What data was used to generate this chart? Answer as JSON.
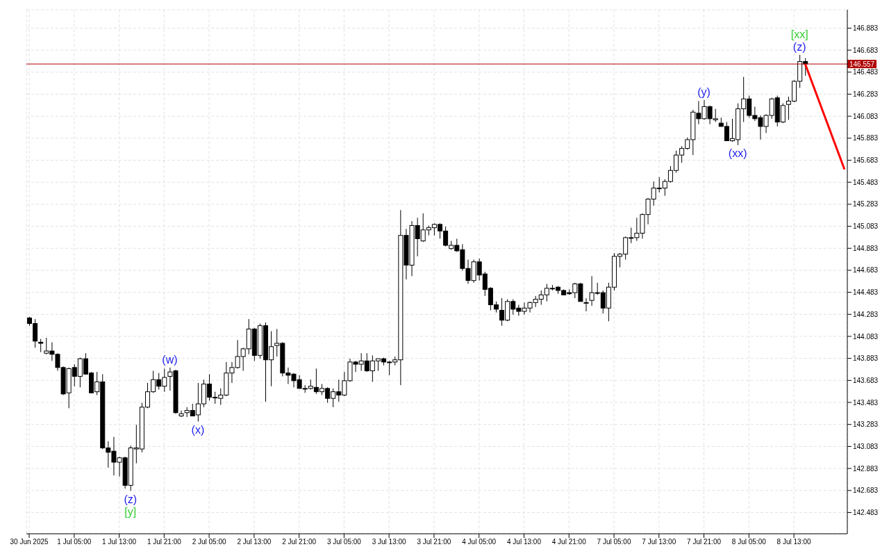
{
  "chart_data": {
    "type": "candlestick",
    "categories": [
      "30 Jun 2025",
      null,
      null,
      null,
      null,
      null,
      null,
      null,
      "1 Jul 05:00",
      null,
      null,
      null,
      null,
      null,
      null,
      null,
      "1 Jul 13:00",
      null,
      null,
      null,
      null,
      null,
      null,
      null,
      "1 Jul 21:00",
      null,
      null,
      null,
      null,
      null,
      null,
      null,
      "2 Jul 05:00",
      null,
      null,
      null,
      null,
      null,
      null,
      null,
      "2 Jul 13:00",
      null,
      null,
      null,
      null,
      null,
      null,
      null,
      "2 Jul 21:00",
      null,
      null,
      null,
      null,
      null,
      null,
      null,
      "3 Jul 05:00",
      null,
      null,
      null,
      null,
      null,
      null,
      null,
      "3 Jul 13:00",
      null,
      null,
      null,
      null,
      null,
      null,
      null,
      "3 Jul 21:00",
      null,
      null,
      null,
      null,
      null,
      null,
      null,
      "4 Jul 05:00",
      null,
      null,
      null,
      null,
      null,
      null,
      null,
      "4 Jul 13:00",
      null,
      null,
      null,
      null,
      null,
      null,
      null,
      "4 Jul 21:00",
      null,
      null,
      null,
      null,
      null,
      null,
      null,
      "7 Jul 05:00",
      null,
      null,
      null,
      null,
      null,
      null,
      null,
      "7 Jul 13:00",
      null,
      null,
      null,
      null,
      null,
      null,
      null,
      "7 Jul 21:00",
      null,
      null,
      null,
      null,
      null,
      null,
      null,
      "8 Jul 05:00",
      null,
      null,
      null,
      null,
      null,
      null,
      null,
      "8 Jul 13:00",
      null,
      null,
      null,
      null,
      null,
      null,
      null,
      null,
      null
    ],
    "ohlc": [
      [
        144.25,
        144.26,
        144.18,
        144.2
      ],
      [
        144.2,
        144.24,
        143.98,
        144.04
      ],
      [
        144.03,
        144.06,
        143.94,
        144.02
      ],
      [
        143.93,
        144.07,
        143.92,
        143.95
      ],
      [
        143.95,
        144.03,
        143.86,
        143.92
      ],
      [
        143.92,
        143.93,
        143.77,
        143.8
      ],
      [
        143.8,
        143.81,
        143.55,
        143.56
      ],
      [
        143.57,
        143.8,
        143.43,
        143.79
      ],
      [
        143.8,
        143.83,
        143.63,
        143.72
      ],
      [
        143.72,
        143.89,
        143.62,
        143.88
      ],
      [
        143.88,
        143.93,
        143.74,
        143.74
      ],
      [
        143.75,
        143.76,
        143.57,
        143.57
      ],
      [
        143.58,
        143.76,
        143.55,
        143.67
      ],
      [
        143.67,
        143.74,
        143.06,
        143.07
      ],
      [
        143.07,
        143.13,
        142.89,
        143.03
      ],
      [
        143.04,
        143.17,
        142.82,
        142.94
      ],
      [
        142.94,
        142.99,
        142.81,
        142.98
      ],
      [
        142.98,
        142.99,
        142.7,
        142.73
      ],
      [
        142.73,
        143.09,
        142.68,
        143.07
      ],
      [
        143.06,
        143.28,
        142.93,
        143.07
      ],
      [
        143.06,
        143.48,
        143.03,
        143.44
      ],
      [
        143.44,
        143.66,
        143.43,
        143.58
      ],
      [
        143.58,
        143.77,
        143.57,
        143.69
      ],
      [
        143.69,
        143.75,
        143.6,
        143.63
      ],
      [
        143.63,
        143.79,
        143.58,
        143.71
      ],
      [
        143.72,
        143.8,
        143.59,
        143.76
      ],
      [
        143.77,
        143.78,
        143.38,
        143.39
      ],
      [
        143.36,
        143.41,
        143.35,
        143.38
      ],
      [
        143.39,
        143.44,
        143.35,
        143.41
      ],
      [
        143.41,
        143.47,
        143.36,
        143.36
      ],
      [
        143.37,
        143.66,
        143.31,
        143.47
      ],
      [
        143.47,
        143.69,
        143.44,
        143.65
      ],
      [
        143.65,
        143.74,
        143.5,
        143.53
      ],
      [
        143.53,
        143.58,
        143.47,
        143.53
      ],
      [
        143.52,
        143.61,
        143.46,
        143.55
      ],
      [
        143.55,
        143.85,
        143.54,
        143.75
      ],
      [
        143.75,
        143.85,
        143.66,
        143.8
      ],
      [
        143.8,
        144.05,
        143.79,
        143.9
      ],
      [
        143.9,
        143.98,
        143.77,
        143.97
      ],
      [
        143.97,
        144.24,
        143.92,
        144.15
      ],
      [
        144.15,
        144.16,
        143.86,
        143.91
      ],
      [
        143.91,
        144.2,
        143.88,
        144.18
      ],
      [
        144.18,
        144.21,
        143.49,
        143.87
      ],
      [
        143.87,
        144.13,
        143.63,
        143.99
      ],
      [
        144.0,
        144.15,
        143.9,
        144.02
      ],
      [
        144.02,
        144.03,
        143.72,
        143.75
      ],
      [
        143.75,
        143.8,
        143.65,
        143.73
      ],
      [
        143.74,
        143.75,
        143.62,
        143.68
      ],
      [
        143.69,
        143.73,
        143.61,
        143.61
      ],
      [
        143.61,
        143.64,
        143.57,
        143.61
      ],
      [
        143.61,
        143.69,
        143.6,
        143.63
      ],
      [
        143.62,
        143.79,
        143.56,
        143.58
      ],
      [
        143.58,
        143.65,
        143.55,
        143.61
      ],
      [
        143.61,
        143.62,
        143.48,
        143.52
      ],
      [
        143.52,
        143.61,
        143.44,
        143.58
      ],
      [
        143.58,
        143.69,
        143.49,
        143.55
      ],
      [
        143.55,
        143.76,
        143.54,
        143.68
      ],
      [
        143.68,
        143.88,
        143.67,
        143.85
      ],
      [
        143.85,
        143.86,
        143.76,
        143.83
      ],
      [
        143.83,
        143.93,
        143.77,
        143.86
      ],
      [
        143.86,
        143.93,
        143.76,
        143.77
      ],
      [
        143.77,
        143.91,
        143.67,
        143.86
      ],
      [
        143.86,
        143.88,
        143.77,
        143.88
      ],
      [
        143.88,
        143.89,
        143.82,
        143.85
      ],
      [
        143.85,
        143.86,
        143.73,
        143.85
      ],
      [
        143.85,
        143.9,
        143.82,
        143.87
      ],
      [
        143.87,
        145.23,
        143.64,
        145.0
      ],
      [
        145.0,
        145.06,
        144.6,
        144.73
      ],
      [
        144.73,
        145.13,
        144.63,
        145.09
      ],
      [
        145.09,
        145.16,
        144.81,
        144.97
      ],
      [
        144.95,
        145.2,
        144.94,
        145.05
      ],
      [
        145.05,
        145.09,
        145.0,
        145.07
      ],
      [
        145.07,
        145.11,
        145.0,
        145.1
      ],
      [
        145.1,
        145.11,
        144.97,
        145.04
      ],
      [
        145.04,
        145.08,
        144.9,
        144.91
      ],
      [
        144.88,
        144.95,
        144.87,
        144.91
      ],
      [
        144.91,
        144.97,
        144.85,
        144.86
      ],
      [
        144.87,
        144.92,
        144.68,
        144.7
      ],
      [
        144.7,
        144.78,
        144.56,
        144.59
      ],
      [
        144.59,
        144.78,
        144.57,
        144.76
      ],
      [
        144.76,
        144.79,
        144.59,
        144.64
      ],
      [
        144.65,
        144.67,
        144.45,
        144.51
      ],
      [
        144.52,
        144.53,
        144.32,
        144.37
      ],
      [
        144.37,
        144.4,
        144.3,
        144.33
      ],
      [
        144.32,
        144.43,
        144.18,
        144.23
      ],
      [
        144.23,
        144.42,
        144.22,
        144.4
      ],
      [
        144.4,
        144.42,
        144.28,
        144.33
      ],
      [
        144.34,
        144.37,
        144.27,
        144.31
      ],
      [
        144.31,
        144.39,
        144.28,
        144.34
      ],
      [
        144.34,
        144.4,
        144.3,
        144.39
      ],
      [
        144.39,
        144.45,
        144.35,
        144.42
      ],
      [
        144.42,
        144.5,
        144.37,
        144.46
      ],
      [
        144.46,
        144.56,
        144.4,
        144.52
      ],
      [
        144.52,
        144.55,
        144.5,
        144.52
      ],
      [
        144.53,
        144.54,
        144.47,
        144.5
      ],
      [
        144.5,
        144.51,
        144.46,
        144.46
      ],
      [
        144.48,
        144.51,
        144.46,
        144.47
      ],
      [
        144.48,
        144.57,
        144.43,
        144.56
      ],
      [
        144.56,
        144.57,
        144.4,
        144.4
      ],
      [
        144.39,
        144.43,
        144.31,
        144.39
      ],
      [
        144.41,
        144.63,
        144.36,
        144.48
      ],
      [
        144.48,
        144.57,
        144.46,
        144.48
      ],
      [
        144.48,
        144.5,
        144.29,
        144.34
      ],
      [
        144.34,
        144.57,
        144.22,
        144.53
      ],
      [
        144.53,
        144.84,
        144.5,
        144.81
      ],
      [
        144.81,
        144.84,
        144.71,
        144.83
      ],
      [
        144.83,
        144.99,
        144.78,
        144.98
      ],
      [
        144.98,
        145.07,
        144.93,
        144.98
      ],
      [
        144.98,
        145.16,
        144.95,
        145.02
      ],
      [
        145.02,
        145.2,
        144.97,
        145.19
      ],
      [
        145.19,
        145.34,
        145.1,
        145.33
      ],
      [
        145.33,
        145.49,
        145.27,
        145.43
      ],
      [
        145.43,
        145.53,
        145.39,
        145.43
      ],
      [
        145.43,
        145.51,
        145.36,
        145.49
      ],
      [
        145.49,
        145.63,
        145.48,
        145.59
      ],
      [
        145.59,
        145.77,
        145.57,
        145.73
      ],
      [
        145.73,
        145.81,
        145.66,
        145.79
      ],
      [
        145.79,
        145.89,
        145.78,
        145.87
      ],
      [
        145.87,
        146.14,
        145.73,
        146.12
      ],
      [
        146.11,
        146.22,
        146.01,
        146.06
      ],
      [
        146.06,
        146.23,
        146.05,
        146.17
      ],
      [
        146.17,
        146.18,
        146.01,
        146.06
      ],
      [
        146.05,
        146.15,
        146.03,
        146.06
      ],
      [
        146.02,
        146.07,
        145.99,
        145.99
      ],
      [
        145.99,
        146.03,
        145.86,
        145.86
      ],
      [
        145.86,
        146.06,
        145.85,
        145.88
      ],
      [
        145.87,
        146.2,
        145.82,
        146.15
      ],
      [
        146.15,
        146.44,
        146.03,
        146.24
      ],
      [
        146.24,
        146.27,
        146.07,
        146.09
      ],
      [
        146.09,
        146.17,
        146.04,
        146.06
      ],
      [
        146.07,
        146.09,
        145.87,
        145.99
      ],
      [
        145.99,
        146.1,
        145.93,
        146.09
      ],
      [
        146.09,
        146.25,
        146.06,
        146.24
      ],
      [
        146.25,
        146.27,
        145.99,
        146.03
      ],
      [
        146.03,
        146.2,
        146.02,
        146.18
      ],
      [
        146.19,
        146.26,
        146.05,
        146.22
      ],
      [
        146.22,
        146.41,
        146.21,
        146.4
      ],
      [
        146.4,
        146.64,
        146.34,
        146.58
      ],
      [
        146.58,
        146.61,
        146.45,
        146.557
      ],
      null,
      null,
      null,
      null,
      null,
      null,
      null
    ],
    "series": [
      {
        "type": "line",
        "color": "#ff0000",
        "values": [
          null,
          null,
          null,
          null,
          null,
          null,
          null,
          null,
          null,
          null,
          null,
          null,
          null,
          null,
          null,
          null,
          null,
          null,
          null,
          null,
          null,
          null,
          null,
          null,
          null,
          null,
          null,
          null,
          null,
          null,
          null,
          null,
          null,
          null,
          null,
          null,
          null,
          null,
          null,
          null,
          null,
          null,
          null,
          null,
          null,
          null,
          null,
          null,
          null,
          null,
          null,
          null,
          null,
          null,
          null,
          null,
          null,
          null,
          null,
          null,
          null,
          null,
          null,
          null,
          null,
          null,
          null,
          null,
          null,
          null,
          null,
          null,
          null,
          null,
          null,
          null,
          null,
          null,
          null,
          null,
          null,
          null,
          null,
          null,
          null,
          null,
          null,
          null,
          null,
          null,
          null,
          null,
          null,
          null,
          null,
          null,
          null,
          null,
          null,
          null,
          null,
          null,
          null,
          null,
          null,
          null,
          null,
          null,
          null,
          null,
          null,
          null,
          null,
          null,
          null,
          null,
          null,
          null,
          null,
          null,
          null,
          null,
          null,
          null,
          null,
          null,
          null,
          null,
          null,
          null,
          null,
          null,
          null,
          null,
          null,
          null,
          null,
          null,
          146.557,
          null,
          null,
          null,
          null,
          null,
          null,
          145.6
        ]
      }
    ],
    "ylim": [
      142.29,
      147.05
    ],
    "yticks": [
      142.483,
      142.683,
      142.883,
      143.083,
      143.283,
      143.483,
      143.683,
      143.883,
      144.083,
      144.283,
      144.483,
      144.683,
      144.883,
      145.083,
      145.283,
      145.483,
      145.683,
      145.883,
      146.083,
      146.283,
      146.483,
      146.683,
      146.883
    ],
    "grid": true,
    "ref_lines": [
      {
        "axis": "y",
        "value": 146.557,
        "label": "146.557",
        "color": "#b00000"
      }
    ],
    "annotations": [
      {
        "text": "(z)",
        "y": 142.68
      },
      {
        "text": "[y]",
        "y": 142.68
      },
      {
        "text": "(w)",
        "y": 143.8
      },
      {
        "text": "(x)",
        "y": 143.31
      },
      {
        "text": "(y)",
        "y": 146.23
      },
      {
        "text": "(xx)",
        "y": 145.82
      },
      {
        "text": "(z)",
        "y": 146.64
      },
      {
        "text": "[xx]",
        "y": 146.64
      }
    ]
  }
}
